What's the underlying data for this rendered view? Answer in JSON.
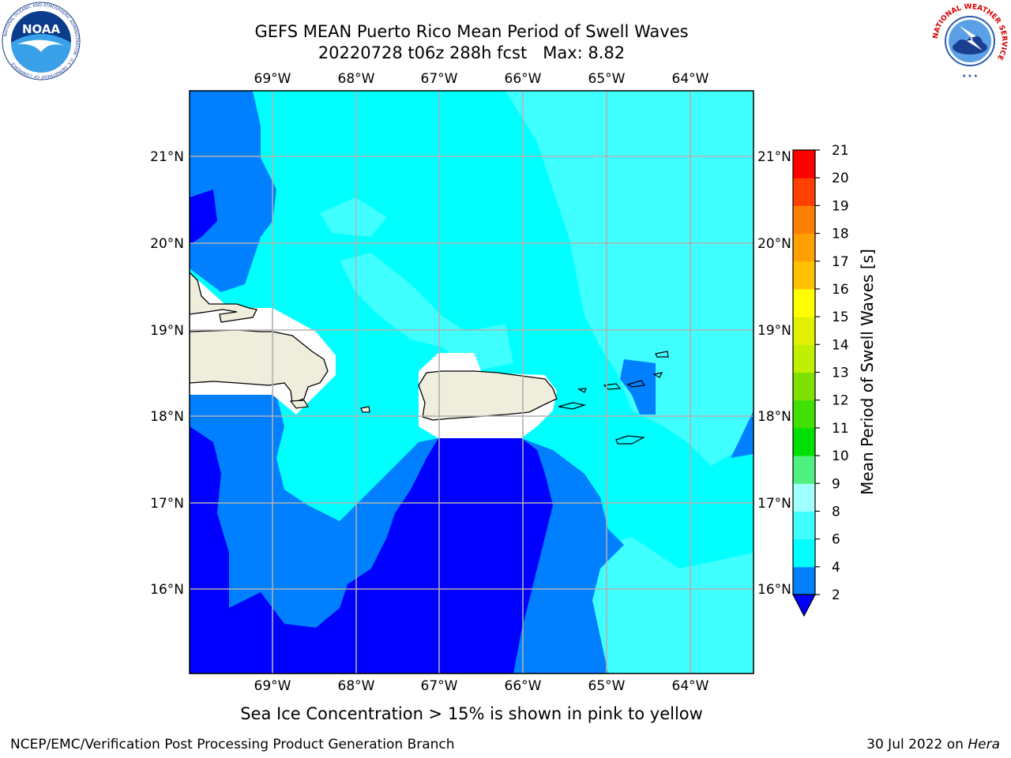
{
  "title": {
    "line1": "GEFS MEAN Puerto Rico Mean Period of Swell Waves",
    "line2": "20220728 t06z 288h fcst   Max: 8.82"
  },
  "logos": {
    "noaa_text": "NOAA",
    "noaa_ring": "NATIONAL OCEANIC AND ATMOSPHERIC ADMINISTRATION · U.S. DEPARTMENT OF COMMERCE",
    "nws_ring": "NATIONAL WEATHER SERVICE"
  },
  "map": {
    "lon_ticks": [
      "69°W",
      "68°W",
      "67°W",
      "66°W",
      "65°W",
      "64°W"
    ],
    "lat_ticks": [
      "21°N",
      "20°N",
      "19°N",
      "18°N",
      "17°N",
      "16°N"
    ],
    "land_color": "#efeddc",
    "grid_color": "#b0b0b0"
  },
  "colorbar": {
    "title": "Mean Period of Swell Waves [s]",
    "levels": [
      "2",
      "4",
      "6",
      "8",
      "9",
      "10",
      "11",
      "12",
      "13",
      "14",
      "15",
      "16",
      "17",
      "18",
      "19",
      "20",
      "21"
    ],
    "colors": [
      "#0000ff",
      "#0080ff",
      "#00ffff",
      "#40ffff",
      "#a0ffff",
      "#50f080",
      "#00e000",
      "#40e000",
      "#80e000",
      "#c0f000",
      "#e0f000",
      "#ffff00",
      "#ffc000",
      "#ffa000",
      "#ff8000",
      "#ff4000",
      "#ff0000"
    ],
    "under_color": "#0000ff"
  },
  "sea_ice_note": "Sea Ice Concentration > 15% is shown in pink to yellow",
  "footer": {
    "left": "NCEP/EMC/Verification Post Processing Product Generation Branch",
    "date": "30 Jul 2022 on ",
    "machine": "Hera"
  }
}
